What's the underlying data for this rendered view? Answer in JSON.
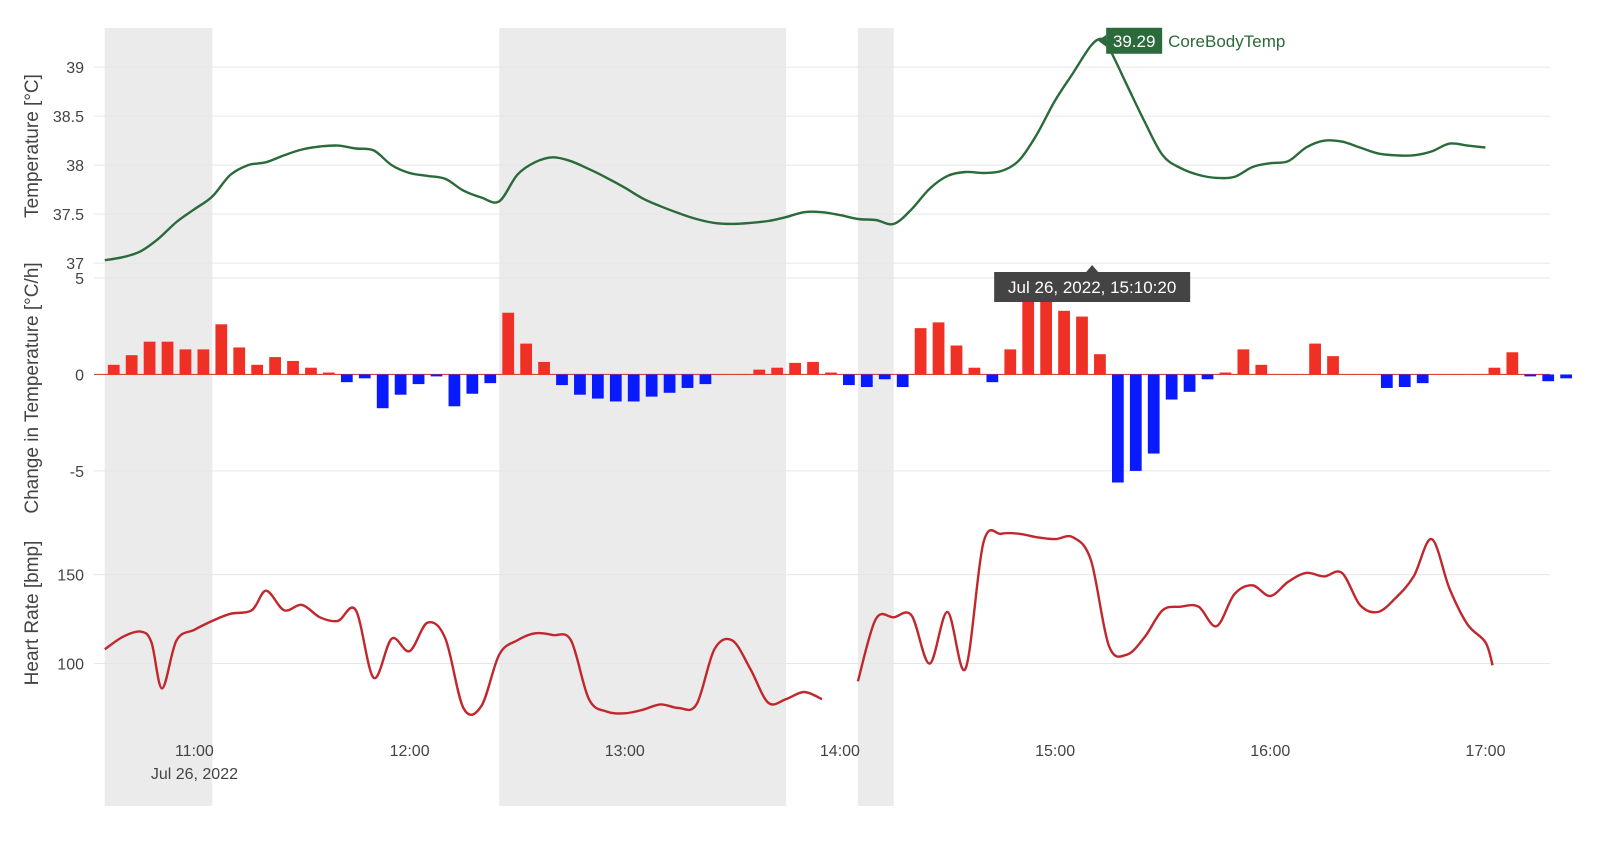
{
  "chart_data": {
    "type": "line",
    "x_axis": {
      "range": [
        "2022-07-26 10:32",
        "2022-07-26 17:18"
      ],
      "ticks": [
        "2022-07-26 11:00",
        "2022-07-26 12:00",
        "2022-07-26 13:00",
        "2022-07-26 14:00",
        "2022-07-26 15:00",
        "2022-07-26 16:00",
        "2022-07-26 17:00"
      ],
      "tick_labels": [
        "11:00",
        "12:00",
        "13:00",
        "14:00",
        "15:00",
        "16:00",
        "17:00"
      ],
      "date_label": "Jul 26, 2022"
    },
    "shaded_periods": [
      [
        "2022-07-26 10:35",
        "2022-07-26 11:05"
      ],
      [
        "2022-07-26 12:25",
        "2022-07-26 13:45"
      ],
      [
        "2022-07-26 14:05",
        "2022-07-26 14:15"
      ]
    ],
    "panels": [
      {
        "id": "temperature",
        "type": "line",
        "ylabel": "Temperature [°C]",
        "ylim": [
          36.95,
          39.4
        ],
        "yticks": [
          37,
          37.5,
          38,
          38.5,
          39
        ],
        "ytick_labels": [
          "37",
          "37.5",
          "38",
          "38.5",
          "39"
        ],
        "grid": true,
        "series": [
          {
            "name": "CoreBodyTemp",
            "color": "#2b6a3a",
            "points": [
              [
                "2022-07-26 10:35",
                37.03
              ],
              [
                "2022-07-26 10:40",
                37.06
              ],
              [
                "2022-07-26 10:45",
                37.12
              ],
              [
                "2022-07-26 10:50",
                37.25
              ],
              [
                "2022-07-26 10:55",
                37.42
              ],
              [
                "2022-07-26 11:00",
                37.55
              ],
              [
                "2022-07-26 11:05",
                37.68
              ],
              [
                "2022-07-26 11:10",
                37.9
              ],
              [
                "2022-07-26 11:15",
                38.0
              ],
              [
                "2022-07-26 11:20",
                38.03
              ],
              [
                "2022-07-26 11:25",
                38.1
              ],
              [
                "2022-07-26 11:30",
                38.16
              ],
              [
                "2022-07-26 11:35",
                38.19
              ],
              [
                "2022-07-26 11:40",
                38.2
              ],
              [
                "2022-07-26 11:45",
                38.17
              ],
              [
                "2022-07-26 11:50",
                38.15
              ],
              [
                "2022-07-26 11:55",
                38.0
              ],
              [
                "2022-07-26 12:00",
                37.92
              ],
              [
                "2022-07-26 12:05",
                37.89
              ],
              [
                "2022-07-26 12:10",
                37.86
              ],
              [
                "2022-07-26 12:15",
                37.74
              ],
              [
                "2022-07-26 12:20",
                37.67
              ],
              [
                "2022-07-26 12:25",
                37.63
              ],
              [
                "2022-07-26 12:30",
                37.9
              ],
              [
                "2022-07-26 12:35",
                38.03
              ],
              [
                "2022-07-26 12:40",
                38.08
              ],
              [
                "2022-07-26 12:45",
                38.04
              ],
              [
                "2022-07-26 12:50",
                37.96
              ],
              [
                "2022-07-26 12:55",
                37.87
              ],
              [
                "2022-07-26 13:00",
                37.77
              ],
              [
                "2022-07-26 13:05",
                37.66
              ],
              [
                "2022-07-26 13:10",
                37.58
              ],
              [
                "2022-07-26 13:15",
                37.51
              ],
              [
                "2022-07-26 13:20",
                37.45
              ],
              [
                "2022-07-26 13:25",
                37.41
              ],
              [
                "2022-07-26 13:30",
                37.4
              ],
              [
                "2022-07-26 13:35",
                37.41
              ],
              [
                "2022-07-26 13:40",
                37.43
              ],
              [
                "2022-07-26 13:45",
                37.47
              ],
              [
                "2022-07-26 13:50",
                37.52
              ],
              [
                "2022-07-26 13:55",
                37.52
              ],
              [
                "2022-07-26 14:00",
                37.49
              ],
              [
                "2022-07-26 14:05",
                37.45
              ],
              [
                "2022-07-26 14:10",
                37.44
              ],
              [
                "2022-07-26 14:15",
                37.4
              ],
              [
                "2022-07-26 14:20",
                37.55
              ],
              [
                "2022-07-26 14:25",
                37.76
              ],
              [
                "2022-07-26 14:30",
                37.89
              ],
              [
                "2022-07-26 14:35",
                37.93
              ],
              [
                "2022-07-26 14:40",
                37.92
              ],
              [
                "2022-07-26 14:45",
                37.94
              ],
              [
                "2022-07-26 14:50",
                38.05
              ],
              [
                "2022-07-26 14:55",
                38.32
              ],
              [
                "2022-07-26 15:00",
                38.66
              ],
              [
                "2022-07-26 15:05",
                38.94
              ],
              [
                "2022-07-26 15:10",
                39.22
              ],
              [
                "2022-07-26 15:13",
                39.29
              ],
              [
                "2022-07-26 15:15",
                39.2
              ],
              [
                "2022-07-26 15:20",
                38.82
              ],
              [
                "2022-07-26 15:25",
                38.44
              ],
              [
                "2022-07-26 15:30",
                38.1
              ],
              [
                "2022-07-26 15:35",
                37.97
              ],
              [
                "2022-07-26 15:40",
                37.9
              ],
              [
                "2022-07-26 15:45",
                37.87
              ],
              [
                "2022-07-26 15:50",
                37.88
              ],
              [
                "2022-07-26 15:55",
                37.98
              ],
              [
                "2022-07-26 16:00",
                38.02
              ],
              [
                "2022-07-26 16:05",
                38.04
              ],
              [
                "2022-07-26 16:10",
                38.18
              ],
              [
                "2022-07-26 16:15",
                38.25
              ],
              [
                "2022-07-26 16:20",
                38.24
              ],
              [
                "2022-07-26 16:25",
                38.18
              ],
              [
                "2022-07-26 16:30",
                38.12
              ],
              [
                "2022-07-26 16:35",
                38.1
              ],
              [
                "2022-07-26 16:40",
                38.1
              ],
              [
                "2022-07-26 16:45",
                38.14
              ],
              [
                "2022-07-26 16:50",
                38.22
              ],
              [
                "2022-07-26 16:55",
                38.2
              ],
              [
                "2022-07-26 17:00",
                38.18
              ]
            ]
          }
        ],
        "hover": {
          "series": "CoreBodyTemp",
          "x": "2022-07-26 15:10:20",
          "y": 39.29,
          "label": "39.29",
          "x_label": "Jul 26, 2022, 15:10:20"
        }
      },
      {
        "id": "change",
        "type": "bar",
        "ylabel": "Change in Temperature [°C/h]",
        "ylim": [
          -6.3,
          5
        ],
        "yticks": [
          -5,
          0,
          5
        ],
        "ytick_labels": [
          "-5",
          "0",
          "5"
        ],
        "grid": true,
        "positive_color": "#ee3124",
        "negative_color": "#0a1aff",
        "bar_width_min": 4,
        "bar_spacing_min": 5,
        "start": "2022-07-26 10:35",
        "values": [
          0.5,
          1.0,
          1.7,
          1.7,
          1.3,
          1.3,
          2.6,
          1.4,
          0.5,
          0.9,
          0.7,
          0.35,
          0.1,
          -0.4,
          -0.2,
          -1.75,
          -1.05,
          -0.5,
          -0.1,
          -1.65,
          -1.0,
          -0.45,
          3.2,
          1.6,
          0.65,
          -0.55,
          -1.05,
          -1.25,
          -1.4,
          -1.4,
          -1.15,
          -0.95,
          -0.7,
          -0.5,
          0.0,
          0.0,
          0.25,
          0.35,
          0.6,
          0.65,
          0.1,
          -0.55,
          -0.65,
          -0.25,
          -0.65,
          2.4,
          2.7,
          1.5,
          0.35,
          -0.4,
          1.3,
          3.8,
          3.8,
          3.3,
          3.0,
          1.05,
          -5.6,
          -5.0,
          -4.1,
          -1.3,
          -0.9,
          -0.25,
          0.1,
          1.3,
          0.5,
          0.0,
          0.0,
          1.6,
          0.95,
          0.0,
          0.0,
          -0.7,
          -0.65,
          -0.45,
          0.0,
          0.0,
          0.0,
          0.35,
          1.15,
          -0.1,
          -0.35,
          -0.2
        ]
      },
      {
        "id": "heart_rate",
        "type": "line",
        "ylabel": "Heart Rate [bmp]",
        "ylim": [
          57,
          192
        ],
        "yticks": [
          100,
          150
        ],
        "ytick_labels": [
          "100",
          "150"
        ],
        "grid": true,
        "series": [
          {
            "name": "HeartRate",
            "color": "#c1272d",
            "segments": [
              [
                [
                  "2022-07-26 10:35",
                  108
                ],
                [
                  "2022-07-26 10:40",
                  115
                ],
                [
                  "2022-07-26 10:45",
                  118
                ],
                [
                  "2022-07-26 10:48",
                  112
                ],
                [
                  "2022-07-26 10:51",
                  86
                ],
                [
                  "2022-07-26 10:55",
                  113
                ],
                [
                  "2022-07-26 11:00",
                  119
                ],
                [
                  "2022-07-26 11:05",
                  124
                ],
                [
                  "2022-07-26 11:10",
                  128
                ],
                [
                  "2022-07-26 11:16",
                  130
                ],
                [
                  "2022-07-26 11:20",
                  141
                ],
                [
                  "2022-07-26 11:25",
                  130
                ],
                [
                  "2022-07-26 11:30",
                  133
                ],
                [
                  "2022-07-26 11:35",
                  126
                ],
                [
                  "2022-07-26 11:40",
                  124
                ],
                [
                  "2022-07-26 11:45",
                  130
                ],
                [
                  "2022-07-26 11:50",
                  92
                ],
                [
                  "2022-07-26 11:55",
                  114
                ],
                [
                  "2022-07-26 12:00",
                  107
                ],
                [
                  "2022-07-26 12:05",
                  123
                ],
                [
                  "2022-07-26 12:10",
                  114
                ],
                [
                  "2022-07-26 12:15",
                  75
                ],
                [
                  "2022-07-26 12:20",
                  76
                ],
                [
                  "2022-07-26 12:25",
                  105
                ],
                [
                  "2022-07-26 12:30",
                  113
                ],
                [
                  "2022-07-26 12:35",
                  117
                ],
                [
                  "2022-07-26 12:40",
                  116
                ],
                [
                  "2022-07-26 12:45",
                  113
                ],
                [
                  "2022-07-26 12:50",
                  80
                ],
                [
                  "2022-07-26 12:55",
                  73
                ],
                [
                  "2022-07-26 13:00",
                  72
                ],
                [
                  "2022-07-26 13:05",
                  74
                ],
                [
                  "2022-07-26 13:10",
                  77
                ],
                [
                  "2022-07-26 13:15",
                  75
                ],
                [
                  "2022-07-26 13:20",
                  77
                ],
                [
                  "2022-07-26 13:25",
                  108
                ],
                [
                  "2022-07-26 13:30",
                  113
                ],
                [
                  "2022-07-26 13:35",
                  97
                ],
                [
                  "2022-07-26 13:40",
                  78
                ],
                [
                  "2022-07-26 13:45",
                  80
                ],
                [
                  "2022-07-26 13:50",
                  84
                ],
                [
                  "2022-07-26 13:55",
                  80
                ]
              ],
              [
                [
                  "2022-07-26 14:05",
                  90
                ],
                [
                  "2022-07-26 14:10",
                  125
                ],
                [
                  "2022-07-26 14:15",
                  126
                ],
                [
                  "2022-07-26 14:20",
                  127
                ],
                [
                  "2022-07-26 14:25",
                  100
                ],
                [
                  "2022-07-26 14:30",
                  129
                ],
                [
                  "2022-07-26 14:35",
                  97
                ],
                [
                  "2022-07-26 14:40",
                  168
                ],
                [
                  "2022-07-26 14:45",
                  173
                ],
                [
                  "2022-07-26 14:50",
                  173
                ],
                [
                  "2022-07-26 14:55",
                  171
                ],
                [
                  "2022-07-26 15:00",
                  170
                ],
                [
                  "2022-07-26 15:05",
                  171
                ],
                [
                  "2022-07-26 15:10",
                  158
                ],
                [
                  "2022-07-26 15:15",
                  110
                ],
                [
                  "2022-07-26 15:20",
                  105
                ],
                [
                  "2022-07-26 15:25",
                  115
                ],
                [
                  "2022-07-26 15:30",
                  130
                ],
                [
                  "2022-07-26 15:35",
                  132
                ],
                [
                  "2022-07-26 15:40",
                  132
                ],
                [
                  "2022-07-26 15:45",
                  121
                ],
                [
                  "2022-07-26 15:50",
                  139
                ],
                [
                  "2022-07-26 15:55",
                  144
                ],
                [
                  "2022-07-26 16:00",
                  138
                ],
                [
                  "2022-07-26 16:05",
                  146
                ],
                [
                  "2022-07-26 16:10",
                  151
                ],
                [
                  "2022-07-26 16:15",
                  149
                ],
                [
                  "2022-07-26 16:20",
                  151
                ],
                [
                  "2022-07-26 16:25",
                  133
                ],
                [
                  "2022-07-26 16:30",
                  129
                ],
                [
                  "2022-07-26 16:35",
                  137
                ],
                [
                  "2022-07-26 16:40",
                  149
                ],
                [
                  "2022-07-26 16:45",
                  170
                ],
                [
                  "2022-07-26 16:50",
                  142
                ],
                [
                  "2022-07-26 16:55",
                  122
                ],
                [
                  "2022-07-26 17:00",
                  112
                ],
                [
                  "2022-07-26 17:02",
                  99
                ]
              ]
            ]
          }
        ]
      }
    ]
  }
}
